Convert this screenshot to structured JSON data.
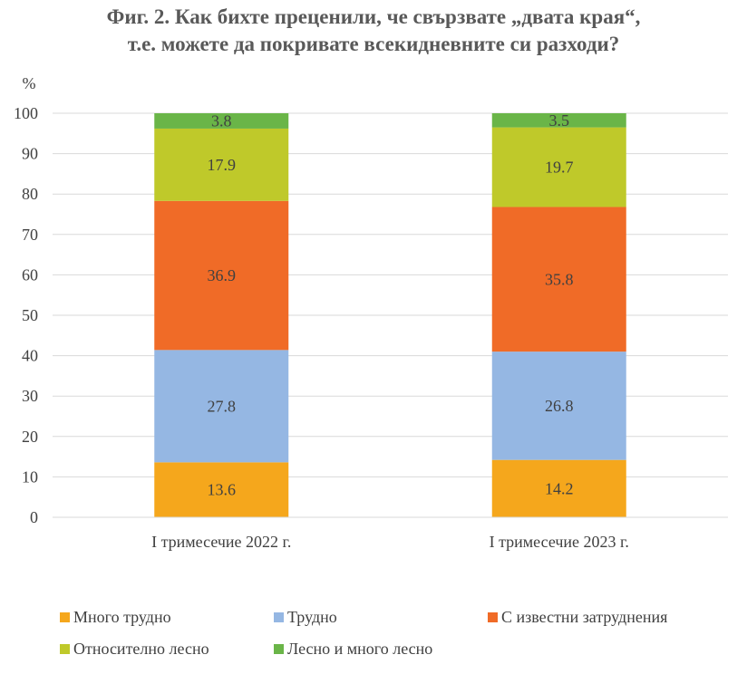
{
  "chart_data": {
    "type": "bar",
    "stacked": true,
    "title_lines": [
      "Фиг. 2. Как бихте преценили, че свързвате „двата края“,",
      "т.е. можете да покривате всекидневните си разходи?"
    ],
    "ylabel": "%",
    "ylim": [
      0,
      100
    ],
    "yticks": [
      "0",
      "10",
      "20",
      "30",
      "40",
      "50",
      "60",
      "70",
      "80",
      "90",
      "100"
    ],
    "grid": true,
    "legend_position": "bottom",
    "categories": [
      "I тримесечие 2022 г.",
      "I тримесечие 2023 г."
    ],
    "series": [
      {
        "name": "Много трудно",
        "color": "#F5A71C",
        "values": [
          13.6,
          14.2
        ]
      },
      {
        "name": "Трудно",
        "color": "#95B7E3",
        "values": [
          27.8,
          26.8
        ]
      },
      {
        "name": "С известни затруднения",
        "color": "#F06B27",
        "values": [
          36.9,
          35.8
        ]
      },
      {
        "name": "Относително лесно",
        "color": "#BFC92A",
        "values": [
          17.9,
          19.7
        ]
      },
      {
        "name": "Лесно и много лесно",
        "color": "#6AB548",
        "values": [
          3.8,
          3.5
        ]
      }
    ]
  }
}
